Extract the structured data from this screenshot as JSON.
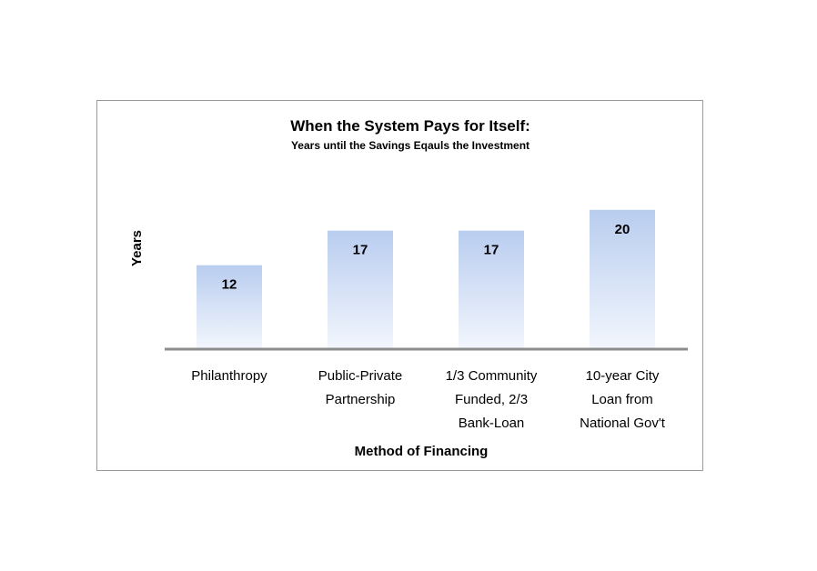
{
  "chart_data": {
    "type": "bar",
    "title": "When the System Pays for Itself:",
    "subtitle": "Years until the Savings Eqauls the Investment",
    "xlabel": "Method of Financing",
    "ylabel": "Years",
    "categories": [
      [
        "Philanthropy"
      ],
      [
        "Public-Private",
        "Partnership"
      ],
      [
        "1/3 Community",
        "Funded, 2/3",
        "Bank-Loan"
      ],
      [
        "10-year City",
        "Loan from",
        "National Gov't"
      ]
    ],
    "values": [
      12,
      17,
      17,
      20
    ],
    "ylim": [
      0,
      20.5
    ],
    "grid": false,
    "legend": "none",
    "colors": {
      "bar_top": "#b9cdef",
      "bar_bottom": "#f2f6fd",
      "axis": "#8c8c8c"
    }
  }
}
